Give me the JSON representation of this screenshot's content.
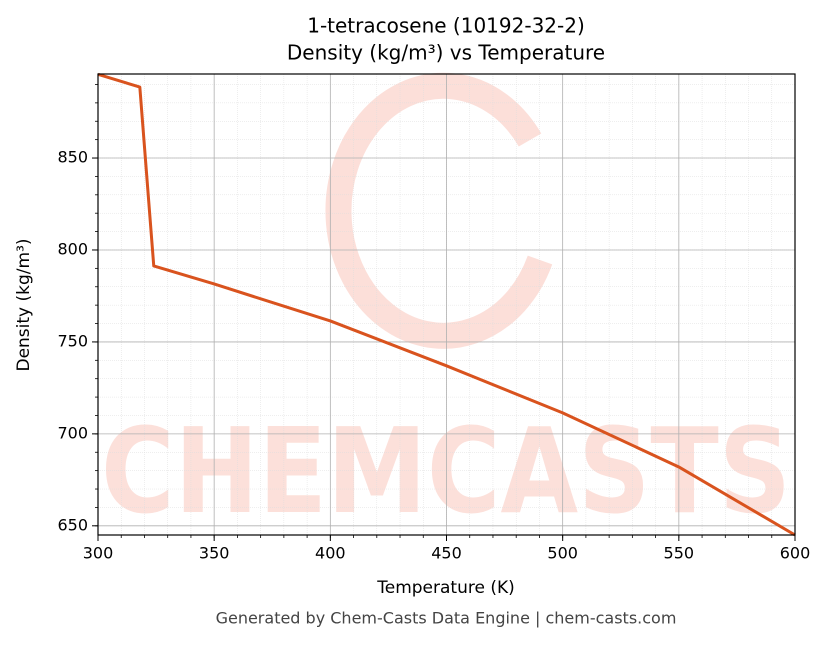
{
  "chart_data": {
    "type": "line",
    "title": "1-tetracosene (10192-32-2)",
    "subtitle": "Density (kg/m³) vs Temperature",
    "x_label": "Temperature (K)",
    "y_label": "Density (kg/m³)",
    "footer": "Generated by Chem-Casts Data Engine | chem-casts.com",
    "watermark": "CHEMCASTS",
    "x": [
      300,
      318,
      324,
      350,
      400,
      450,
      500,
      550,
      600
    ],
    "series": [
      {
        "name": "Density",
        "color": "#d9531e",
        "values": [
          895.5,
          888.6,
          791.3,
          781.5,
          761.4,
          737,
          711.4,
          682,
          645
        ]
      }
    ],
    "xlim": [
      300,
      600
    ],
    "xticks": [
      300,
      350,
      400,
      450,
      500,
      550,
      600
    ],
    "ylim": [
      645,
      895.7
    ],
    "yticks": [
      650,
      700,
      750,
      800,
      850
    ],
    "grid": true,
    "minor_grid": true
  }
}
